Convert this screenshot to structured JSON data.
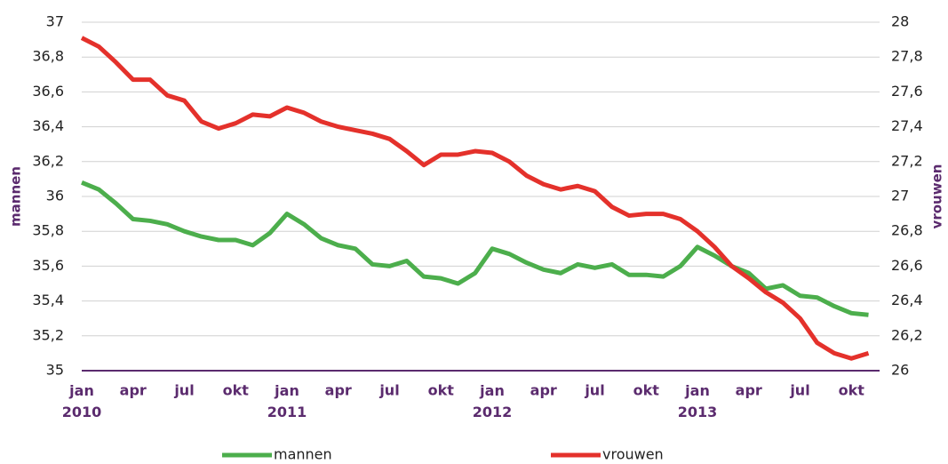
{
  "chart_data": {
    "type": "line",
    "categories": [
      "jan 2010",
      null,
      null,
      "apr",
      null,
      null,
      "jul",
      null,
      null,
      "okt",
      null,
      null,
      "jan 2011",
      null,
      null,
      "apr",
      null,
      null,
      "jul",
      null,
      null,
      "okt",
      null,
      null,
      "jan 2012",
      null,
      null,
      "apr",
      null,
      null,
      "jul",
      null,
      null,
      "okt",
      null,
      null,
      "jan 2013",
      null,
      null,
      "apr",
      null,
      null,
      "jul",
      null,
      null,
      "okt",
      null
    ],
    "ylabel": "mannen",
    "y2label": "vrouwen",
    "ylim": [
      35,
      37
    ],
    "yticks": [
      35,
      {
        "value": 35.2,
        "label": "35,2"
      },
      {
        "value": 35.4,
        "label": "35,4"
      },
      {
        "value": 35.6,
        "label": "35,6"
      },
      {
        "value": 35.8,
        "label": "35,8"
      },
      36,
      {
        "value": 36.2,
        "label": "36,2"
      },
      {
        "value": 36.4,
        "label": "36,4"
      },
      {
        "value": 36.6,
        "label": "36,6"
      },
      {
        "value": 36.8,
        "label": "36,8"
      },
      37
    ],
    "y2lim": [
      26,
      28
    ],
    "y2ticks": [
      26,
      {
        "value": 26.2,
        "label": "26,2"
      },
      {
        "value": 26.4,
        "label": "26,4"
      },
      {
        "value": 26.6,
        "label": "26,6"
      },
      {
        "value": 26.8,
        "label": "26,8"
      },
      27,
      {
        "value": 27.2,
        "label": "27,2"
      },
      {
        "value": 27.4,
        "label": "27,4"
      },
      {
        "value": 27.6,
        "label": "27,6"
      },
      {
        "value": 27.8,
        "label": "27,8"
      },
      28
    ],
    "grid": true,
    "legend": "bottom",
    "series": [
      {
        "name": "mannen",
        "color": "#4cae4c",
        "values": [
          36.08,
          36.04,
          35.96,
          35.87,
          35.86,
          35.84,
          35.8,
          35.77,
          35.75,
          35.75,
          35.72,
          35.79,
          35.9,
          35.84,
          35.76,
          35.72,
          35.7,
          35.61,
          35.6,
          35.63,
          35.54,
          35.53,
          35.5,
          35.56,
          35.7,
          35.67,
          35.62,
          35.58,
          35.56,
          35.61,
          35.59,
          35.61,
          35.55,
          35.55,
          35.54,
          35.6,
          35.71,
          35.66,
          35.6,
          35.56,
          35.47,
          35.49,
          35.43,
          35.42,
          35.37,
          35.33,
          35.32
        ]
      },
      {
        "name": "vrouwen",
        "color": "#e4312b",
        "axis": "y2",
        "values": [
          27.91,
          27.86,
          27.77,
          27.67,
          27.67,
          27.58,
          27.55,
          27.43,
          27.39,
          27.42,
          27.47,
          27.46,
          27.51,
          27.48,
          27.43,
          27.4,
          27.38,
          27.36,
          27.33,
          27.26,
          27.18,
          27.24,
          27.24,
          27.26,
          27.25,
          27.2,
          27.12,
          27.07,
          27.04,
          27.06,
          27.03,
          26.94,
          26.89,
          26.9,
          26.9,
          26.87,
          26.8,
          26.71,
          26.6,
          26.53,
          26.45,
          26.39,
          26.3,
          26.16,
          26.1,
          26.07,
          26.1
        ]
      }
    ]
  }
}
